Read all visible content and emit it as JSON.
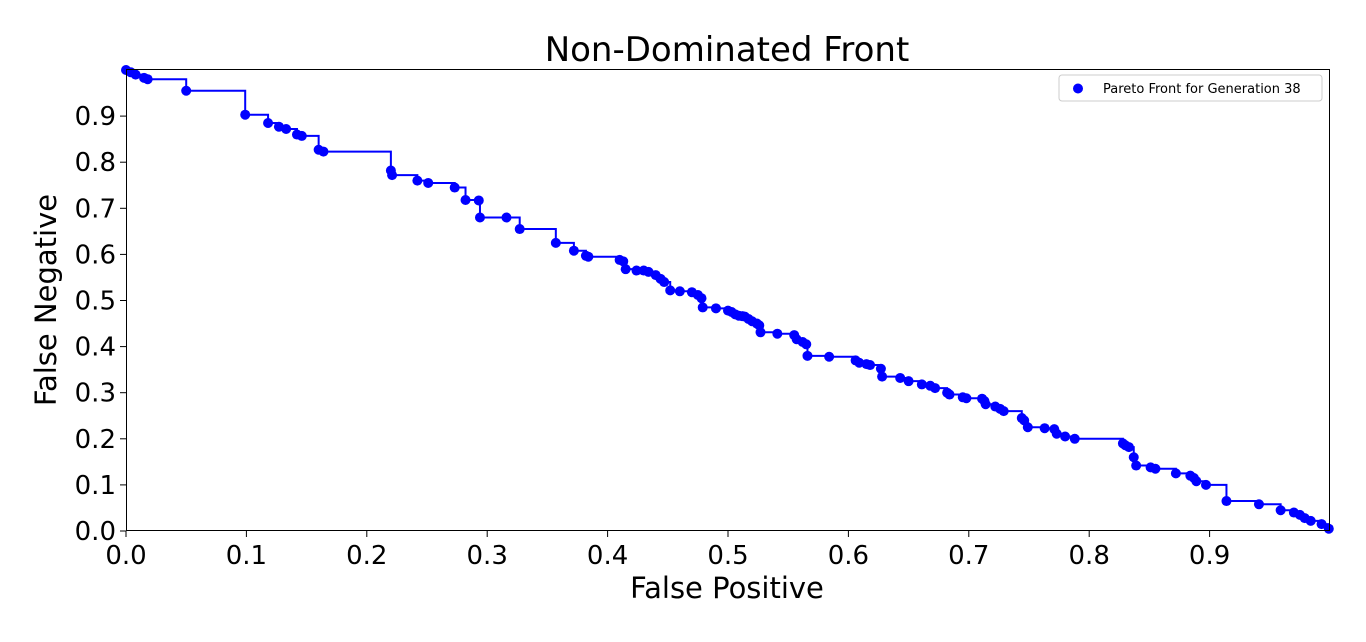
{
  "chart_data": {
    "type": "scatter",
    "title": "Non-Dominated Front",
    "xlabel": "False Positive",
    "ylabel": "False Negative",
    "xlim": [
      0.0,
      1.0
    ],
    "ylim": [
      0.0,
      1.0
    ],
    "xticks": [
      0.0,
      0.1,
      0.2,
      0.3,
      0.4,
      0.5,
      0.6,
      0.7,
      0.8,
      0.9
    ],
    "xtick_labels": [
      "0.0",
      "0.1",
      "0.2",
      "0.3",
      "0.4",
      "0.5",
      "0.6",
      "0.7",
      "0.8",
      "0.9"
    ],
    "yticks": [
      0.0,
      0.1,
      0.2,
      0.3,
      0.4,
      0.5,
      0.6,
      0.7,
      0.8,
      0.9
    ],
    "ytick_labels": [
      "0.0",
      "0.1",
      "0.2",
      "0.3",
      "0.4",
      "0.5",
      "0.6",
      "0.7",
      "0.8",
      "0.9"
    ],
    "grid": false,
    "legend_position": "top-right",
    "color": "#0000ff",
    "series": [
      {
        "name": "Pareto Front for Generation 38",
        "x": [
          0.0,
          0.004,
          0.008,
          0.015,
          0.018,
          0.05,
          0.099,
          0.118,
          0.127,
          0.133,
          0.142,
          0.146,
          0.16,
          0.164,
          0.22,
          0.221,
          0.242,
          0.251,
          0.273,
          0.282,
          0.293,
          0.294,
          0.316,
          0.327,
          0.357,
          0.372,
          0.382,
          0.384,
          0.41,
          0.413,
          0.415,
          0.424,
          0.43,
          0.434,
          0.44,
          0.444,
          0.447,
          0.452,
          0.46,
          0.47,
          0.475,
          0.478,
          0.479,
          0.49,
          0.5,
          0.503,
          0.506,
          0.509,
          0.512,
          0.514,
          0.517,
          0.52,
          0.524,
          0.526,
          0.527,
          0.541,
          0.555,
          0.557,
          0.562,
          0.565,
          0.566,
          0.584,
          0.606,
          0.609,
          0.615,
          0.618,
          0.627,
          0.628,
          0.643,
          0.65,
          0.661,
          0.668,
          0.672,
          0.682,
          0.684,
          0.695,
          0.698,
          0.711,
          0.713,
          0.714,
          0.722,
          0.726,
          0.729,
          0.744,
          0.746,
          0.749,
          0.763,
          0.771,
          0.773,
          0.78,
          0.788,
          0.828,
          0.83,
          0.833,
          0.837,
          0.839,
          0.851,
          0.855,
          0.872,
          0.884,
          0.887,
          0.889,
          0.897,
          0.914,
          0.941,
          0.959,
          0.97,
          0.975,
          0.979,
          0.984,
          0.993,
          0.999
        ],
        "y": [
          1.0,
          0.995,
          0.99,
          0.983,
          0.98,
          0.955,
          0.903,
          0.885,
          0.877,
          0.872,
          0.86,
          0.857,
          0.827,
          0.823,
          0.782,
          0.772,
          0.76,
          0.755,
          0.745,
          0.718,
          0.717,
          0.68,
          0.68,
          0.655,
          0.625,
          0.608,
          0.597,
          0.595,
          0.588,
          0.585,
          0.568,
          0.565,
          0.565,
          0.562,
          0.555,
          0.547,
          0.54,
          0.522,
          0.52,
          0.518,
          0.512,
          0.505,
          0.485,
          0.483,
          0.478,
          0.475,
          0.47,
          0.467,
          0.466,
          0.465,
          0.46,
          0.455,
          0.45,
          0.446,
          0.431,
          0.428,
          0.425,
          0.416,
          0.41,
          0.405,
          0.38,
          0.378,
          0.37,
          0.365,
          0.362,
          0.36,
          0.352,
          0.335,
          0.332,
          0.325,
          0.318,
          0.315,
          0.31,
          0.3,
          0.296,
          0.29,
          0.288,
          0.287,
          0.282,
          0.275,
          0.27,
          0.265,
          0.26,
          0.245,
          0.24,
          0.225,
          0.223,
          0.221,
          0.211,
          0.205,
          0.2,
          0.19,
          0.186,
          0.182,
          0.16,
          0.142,
          0.138,
          0.135,
          0.125,
          0.12,
          0.115,
          0.108,
          0.1,
          0.065,
          0.058,
          0.045,
          0.04,
          0.035,
          0.028,
          0.022,
          0.015,
          0.005
        ]
      }
    ]
  }
}
